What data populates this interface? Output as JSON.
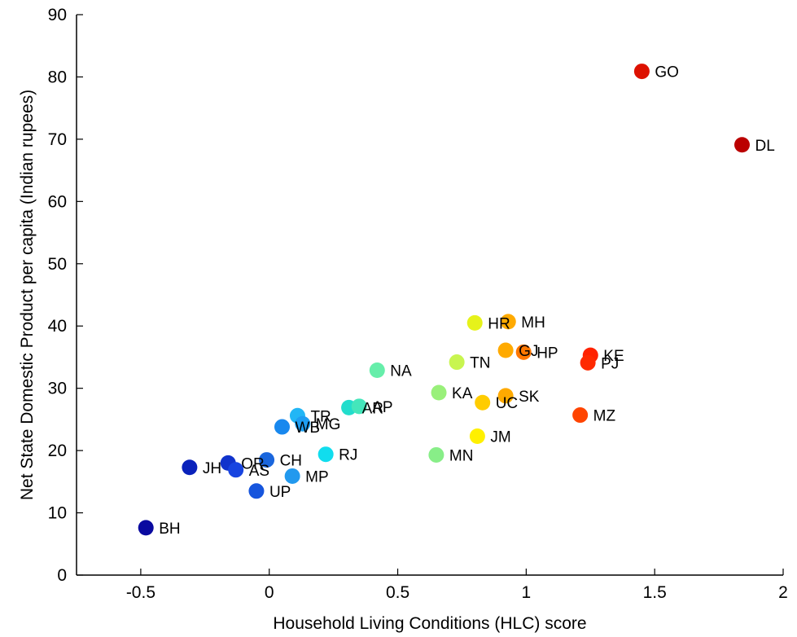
{
  "chart_data": {
    "type": "scatter",
    "title": "",
    "xlabel": "Household Living Conditions (HLC) score",
    "ylabel": "Net State Domestic Product per capita (Indian rupees)",
    "xlim": [
      -0.75,
      2
    ],
    "ylim": [
      0,
      90
    ],
    "xticks": [
      -0.5,
      0,
      0.5,
      1,
      1.5,
      2
    ],
    "xtick_labels": [
      "-0.5",
      "0",
      "0.5",
      "1",
      "1.5",
      "2"
    ],
    "yticks": [
      0,
      10,
      20,
      30,
      40,
      50,
      60,
      70,
      80,
      90
    ],
    "ytick_labels": [
      "0",
      "10",
      "20",
      "30",
      "40",
      "50",
      "60",
      "70",
      "80",
      "90"
    ],
    "grid": false,
    "colormap": "jet (colored by HLC score)",
    "points": [
      {
        "label": "GO",
        "x": 1.45,
        "y": 80.9,
        "color": "#dd1100"
      },
      {
        "label": "DL",
        "x": 1.84,
        "y": 69.1,
        "color": "#bb0000"
      },
      {
        "label": "HR",
        "x": 0.8,
        "y": 40.5,
        "color": "#e6f21a"
      },
      {
        "label": "MH",
        "x": 0.93,
        "y": 40.7,
        "color": "#ffaa00"
      },
      {
        "label": "GJ",
        "x": 0.92,
        "y": 36.1,
        "color": "#ffaa00"
      },
      {
        "label": "HP",
        "x": 0.99,
        "y": 35.8,
        "color": "#ff7700"
      },
      {
        "label": "KE",
        "x": 1.25,
        "y": 35.3,
        "color": "#ff2200"
      },
      {
        "label": "PJ",
        "x": 1.24,
        "y": 34.1,
        "color": "#ff2a00"
      },
      {
        "label": "TN",
        "x": 0.73,
        "y": 34.2,
        "color": "#c8f550"
      },
      {
        "label": "NA",
        "x": 0.42,
        "y": 32.9,
        "color": "#66eeaa"
      },
      {
        "label": "KA",
        "x": 0.66,
        "y": 29.3,
        "color": "#99f07a"
      },
      {
        "label": "SK",
        "x": 0.92,
        "y": 28.8,
        "color": "#ffaa00"
      },
      {
        "label": "UC",
        "x": 0.83,
        "y": 27.7,
        "color": "#ffcc00"
      },
      {
        "label": "MZ",
        "x": 1.21,
        "y": 25.7,
        "color": "#ff4400"
      },
      {
        "label": "AR",
        "x": 0.31,
        "y": 26.9,
        "color": "#22ddcc"
      },
      {
        "label": "AP",
        "x": 0.35,
        "y": 27.1,
        "color": "#44e6bb"
      },
      {
        "label": "TR",
        "x": 0.11,
        "y": 25.6,
        "color": "#22b6f5"
      },
      {
        "label": "MG",
        "x": 0.13,
        "y": 24.3,
        "color": "#1e9ef2"
      },
      {
        "label": "WB",
        "x": 0.05,
        "y": 23.8,
        "color": "#1888ee"
      },
      {
        "label": "JM",
        "x": 0.81,
        "y": 22.3,
        "color": "#fff000"
      },
      {
        "label": "RJ",
        "x": 0.22,
        "y": 19.4,
        "color": "#11ddee"
      },
      {
        "label": "MN",
        "x": 0.65,
        "y": 19.3,
        "color": "#88ee88"
      },
      {
        "label": "CH",
        "x": -0.01,
        "y": 18.5,
        "color": "#1a66dd"
      },
      {
        "label": "OR",
        "x": -0.16,
        "y": 18.0,
        "color": "#1133cc"
      },
      {
        "label": "AS",
        "x": -0.13,
        "y": 16.9,
        "color": "#1844e0"
      },
      {
        "label": "JH",
        "x": -0.31,
        "y": 17.3,
        "color": "#0a22bb"
      },
      {
        "label": "MP",
        "x": 0.09,
        "y": 15.9,
        "color": "#2299ee"
      },
      {
        "label": "UP",
        "x": -0.05,
        "y": 13.5,
        "color": "#1655dd"
      },
      {
        "label": "BH",
        "x": -0.48,
        "y": 7.6,
        "color": "#0a0aa0"
      }
    ]
  }
}
